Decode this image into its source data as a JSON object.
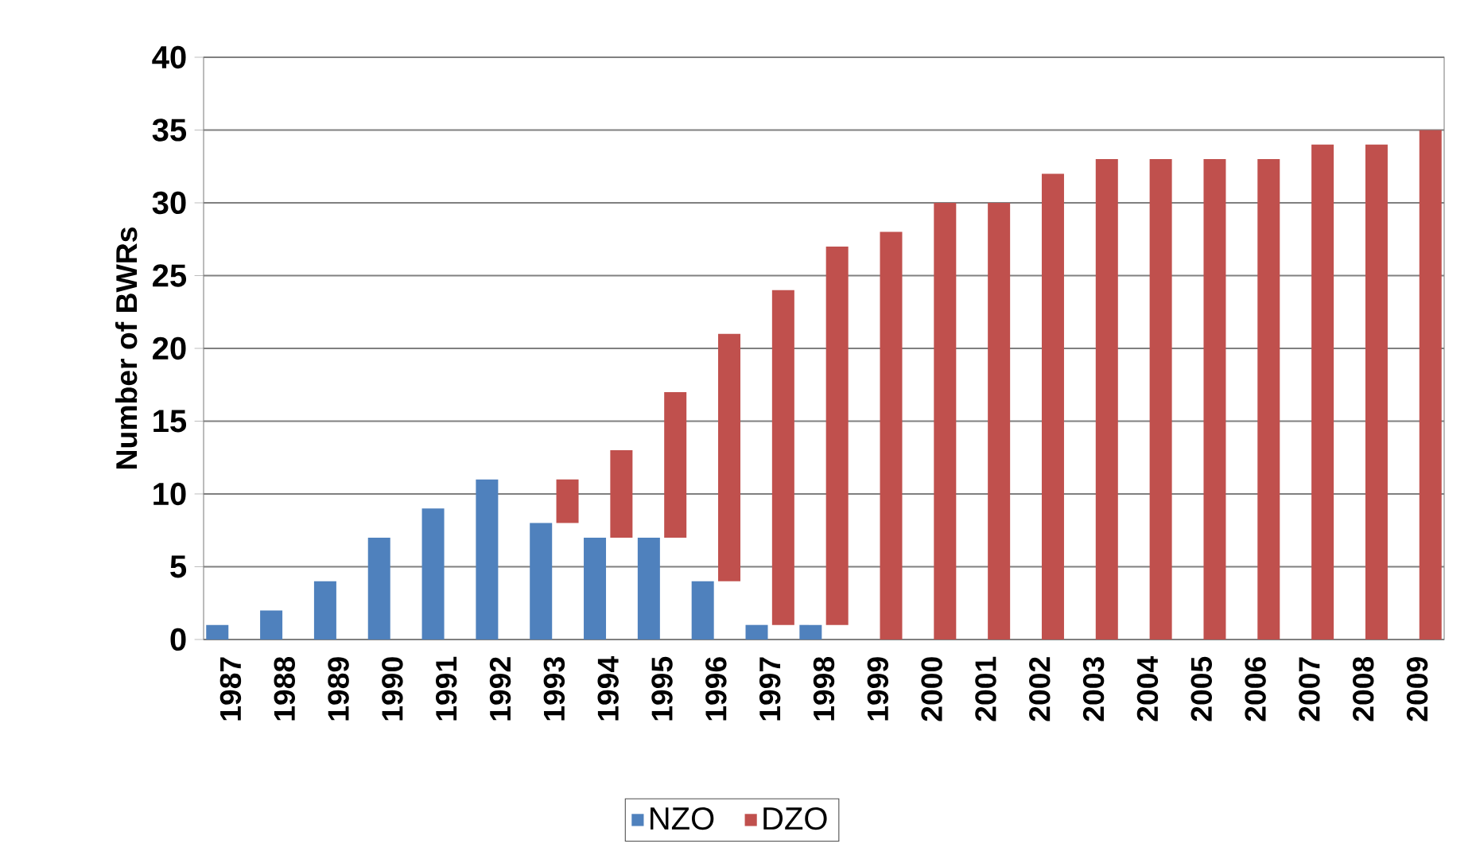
{
  "chart_data": {
    "type": "bar",
    "stacked": true,
    "ylabel": "Number of BWRs",
    "categories": [
      "1987",
      "1988",
      "1989",
      "1990",
      "1991",
      "1992",
      "1993",
      "1994",
      "1995",
      "1996",
      "1997",
      "1998",
      "1999",
      "2000",
      "2001",
      "2002",
      "2003",
      "2004",
      "2005",
      "2006",
      "2007",
      "2008",
      "2009"
    ],
    "series": [
      {
        "name": "NZO",
        "color": "#4f81bd",
        "values": [
          1,
          2,
          4,
          7,
          9,
          11,
          8,
          7,
          7,
          4,
          1,
          1,
          0,
          0,
          0,
          0,
          0,
          0,
          0,
          0,
          0,
          0,
          0
        ]
      },
      {
        "name": "DZO",
        "color": "#c0504d",
        "values": [
          0,
          0,
          0,
          0,
          0,
          0,
          3,
          6,
          10,
          17,
          23,
          26,
          28,
          30,
          30,
          32,
          33,
          33,
          33,
          33,
          34,
          34,
          35
        ]
      }
    ],
    "ylim": [
      0,
      40
    ],
    "yticks": [
      0,
      5,
      10,
      15,
      20,
      25,
      30,
      35,
      40
    ],
    "grid": "y",
    "legend": "bottom"
  }
}
